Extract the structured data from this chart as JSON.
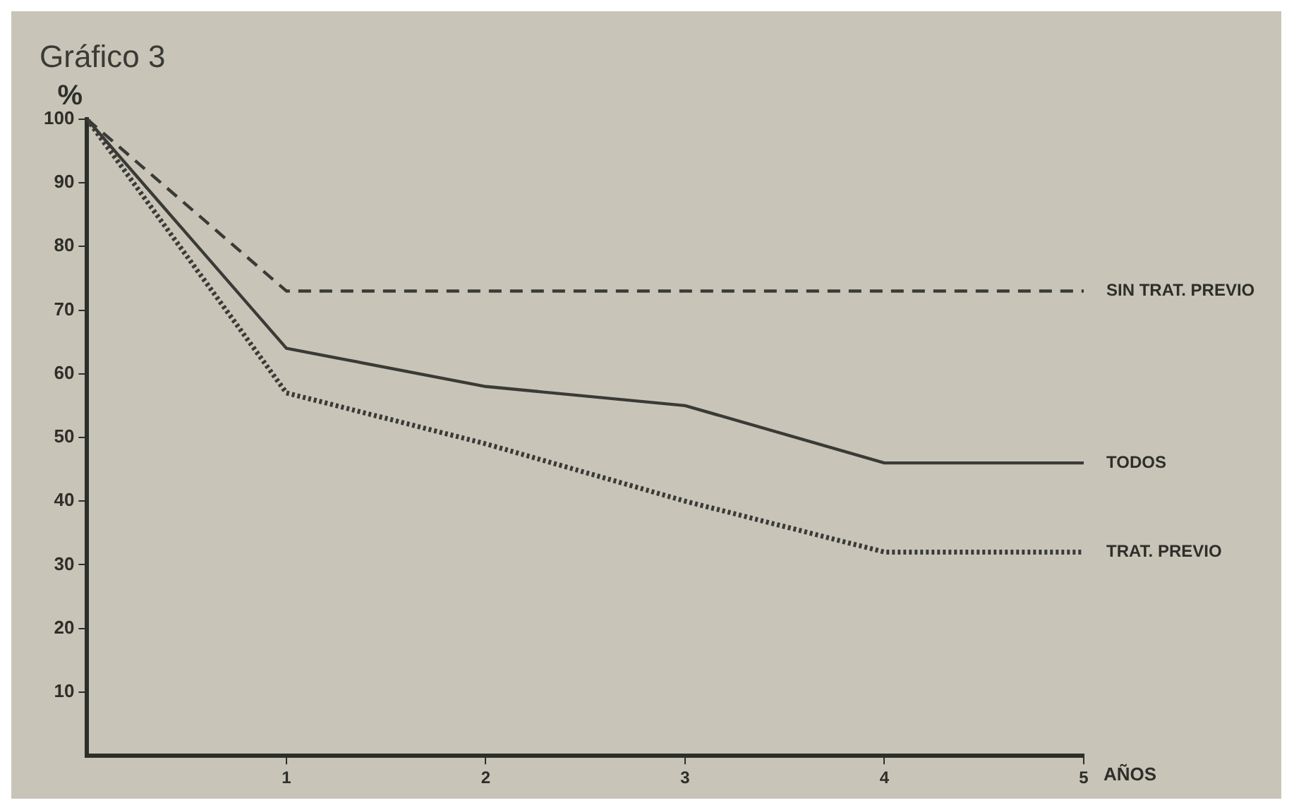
{
  "chart_data": {
    "type": "line",
    "title": "Gráfico 3",
    "xlabel": "AÑOS",
    "ylabel": "%",
    "x": [
      0,
      1,
      2,
      3,
      4,
      5
    ],
    "series": [
      {
        "name": "SIN TRAT. PREVIO",
        "color": "#3a3a36",
        "line_style": "dashed",
        "values": [
          100,
          73,
          73,
          73,
          73,
          73
        ]
      },
      {
        "name": "TODOS",
        "color": "#3a3a36",
        "line_style": "solid",
        "values": [
          100,
          64,
          58,
          55,
          46,
          46
        ]
      },
      {
        "name": "TRAT. PREVIO",
        "color": "#3a3a36",
        "line_style": "dotted",
        "values": [
          100,
          57,
          49,
          40,
          32,
          32
        ]
      }
    ],
    "xlim": [
      0,
      5
    ],
    "xticks": [
      1,
      2,
      3,
      4,
      5
    ],
    "ylim": [
      0,
      100
    ],
    "yticks": [
      10,
      20,
      30,
      40,
      50,
      60,
      70,
      80,
      90,
      100
    ],
    "grid": false,
    "legend": false,
    "marker": "none"
  }
}
